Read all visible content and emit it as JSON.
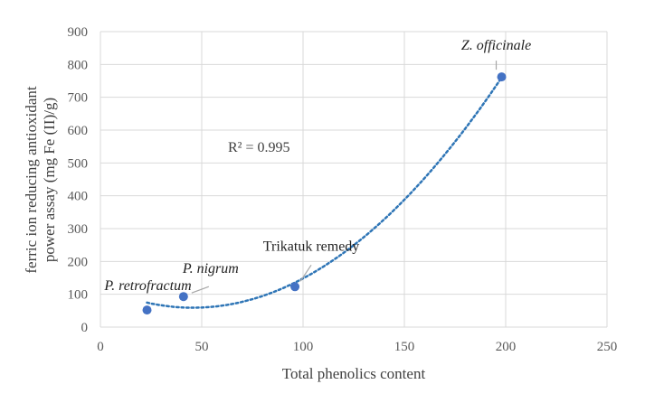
{
  "chart_data": {
    "type": "scatter",
    "xlabel": "Total phenolics content",
    "ylabel_lines": [
      "ferric ion reducing antioxidant",
      "power assay (mg Fe (II)/g)"
    ],
    "xlim": [
      0,
      250
    ],
    "ylim": [
      0,
      900
    ],
    "x_ticks": [
      0,
      50,
      100,
      150,
      200,
      250
    ],
    "y_ticks": [
      0,
      100,
      200,
      300,
      400,
      500,
      600,
      700,
      800,
      900
    ],
    "grid": true,
    "points": [
      {
        "label": "P. retrofractum",
        "italic": true,
        "x": 23,
        "y": 52
      },
      {
        "label": "P. nigrum",
        "italic": true,
        "x": 41,
        "y": 93
      },
      {
        "label": "Trikatuk remedy",
        "italic": false,
        "x": 96,
        "y": 123
      },
      {
        "label": "Z. officinale",
        "italic": true,
        "x": 198,
        "y": 762
      }
    ],
    "trendline": {
      "type": "polynomial-2",
      "style": "dotted",
      "r2_text": "R² = 0.995"
    },
    "colors": {
      "marker": "#4472C4",
      "trendline": "#2E75B6",
      "grid": "#D9D9D9",
      "leader": "#A6A6A6"
    }
  }
}
